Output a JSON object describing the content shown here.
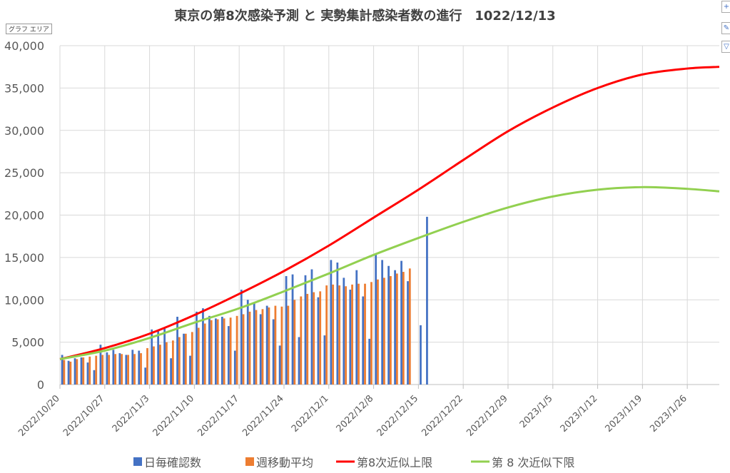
{
  "chart_data": {
    "type": "bar",
    "title": "東京の第8次感染予測 と 実勢集計感染者数の進行　1022/12/13",
    "area_label": "グラフ エリア",
    "ylim": [
      0,
      40000
    ],
    "y_ticks": [
      "0",
      "5,000",
      "10,000",
      "15,000",
      "20,000",
      "25,000",
      "30,000",
      "35,000",
      "40,000"
    ],
    "x_start": "2022/10/20",
    "x_end": "2023/1/31",
    "x_tick_labels": [
      "2022/10/20",
      "2022/10/27",
      "2022/11/3",
      "2022/11/10",
      "2022/11/17",
      "2022/11/24",
      "2022/12/1",
      "2022/12/8",
      "2022/12/15",
      "2022/12/22",
      "2022/12/29",
      "2023/1/5",
      "2023/1/12",
      "2023/1/19",
      "2023/1/26"
    ],
    "grid": true,
    "legend_position": "bottom",
    "series": [
      {
        "name": "日毎確認数",
        "kind": "bar",
        "color": "#4472c4",
        "start": "2022/10/20",
        "values": [
          3500,
          2800,
          3100,
          3200,
          2600,
          1700,
          4700,
          3800,
          4100,
          3700,
          3500,
          4100,
          4000,
          2000,
          6500,
          6300,
          6600,
          3100,
          8000,
          6000,
          3400,
          8600,
          9000,
          8100,
          7800,
          8000,
          6900,
          4000,
          11200,
          10000,
          9700,
          8300,
          9300,
          7700,
          4600,
          12800,
          13000,
          5600,
          12900,
          13600,
          10300,
          5800,
          14700,
          14400,
          12600,
          11200,
          13500,
          10400,
          5400,
          15500,
          14700,
          14000,
          13500,
          14600,
          12200,
          null,
          7000,
          19800
        ]
      },
      {
        "name": "週移動平均",
        "kind": "bar",
        "color": "#ed7d31",
        "start": "2022/10/20",
        "values": [
          2900,
          2700,
          3000,
          3200,
          3300,
          3400,
          3500,
          3500,
          3600,
          3600,
          3500,
          3600,
          3700,
          4300,
          4500,
          4700,
          5000,
          5200,
          5600,
          6000,
          6200,
          6700,
          7200,
          7600,
          7700,
          7800,
          7900,
          8100,
          8300,
          8600,
          8800,
          8900,
          9100,
          9300,
          9200,
          9300,
          10000,
          10400,
          10700,
          10900,
          11000,
          11700,
          11800,
          11700,
          11600,
          11800,
          11900,
          11900,
          12100,
          12400,
          12600,
          12800,
          13100,
          13300,
          13700
        ]
      },
      {
        "name": "第8次近似上限",
        "kind": "line",
        "color": "#ff0000",
        "x": [
          "2022/10/20",
          "2022/10/27",
          "2022/11/3",
          "2022/11/10",
          "2022/11/17",
          "2022/11/24",
          "2022/12/1",
          "2022/12/8",
          "2022/12/15",
          "2022/12/22",
          "2022/12/29",
          "2023/1/5",
          "2023/1/12",
          "2023/1/19",
          "2023/1/26",
          "2023/1/31"
        ],
        "values": [
          3000,
          4300,
          6000,
          8200,
          10700,
          13400,
          16400,
          19700,
          23000,
          26500,
          29900,
          32700,
          35000,
          36600,
          37300,
          37500
        ]
      },
      {
        "name": "第 8 次近似下限",
        "kind": "line",
        "color": "#92d050",
        "x": [
          "2022/10/20",
          "2022/10/27",
          "2022/11/3",
          "2022/11/10",
          "2022/11/17",
          "2022/11/24",
          "2022/12/1",
          "2022/12/8",
          "2022/12/15",
          "2022/12/22",
          "2022/12/29",
          "2023/1/5",
          "2023/1/12",
          "2023/1/19",
          "2023/1/26",
          "2023/1/31"
        ],
        "values": [
          3000,
          4000,
          5500,
          7300,
          9000,
          11000,
          13100,
          15300,
          17300,
          19200,
          20900,
          22200,
          23000,
          23300,
          23100,
          22800
        ]
      }
    ]
  }
}
